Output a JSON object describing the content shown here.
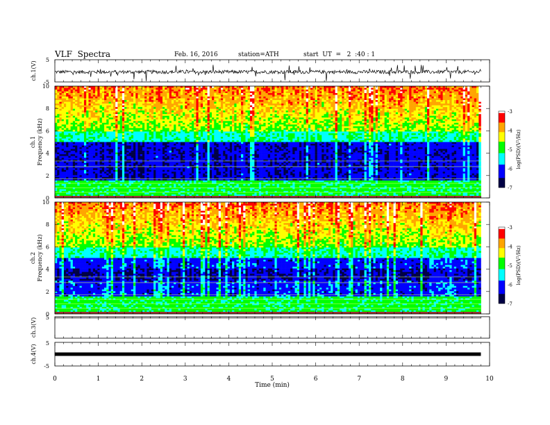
{
  "header": {
    "title": "VLF  Spectra",
    "date": "Feb. 16, 2016",
    "station": "station=ATH",
    "start": "start  UT  =   2  :40 : 1"
  },
  "colors": {
    "spectrogram_ramp": [
      "#ffffff",
      "#ff0000",
      "#ffa500",
      "#ffff00",
      "#00ff00",
      "#00ffff",
      "#0000ff",
      "#000044"
    ]
  },
  "chart_data": [
    {
      "type": "line",
      "title": "",
      "ylabel": "ch.1(V)",
      "ylim": [
        -5,
        5
      ],
      "yticks": [
        "5",
        "-5"
      ],
      "description_values": {
        "baseline_V": -0.5,
        "spike_range_V": [
          -5,
          3
        ]
      }
    },
    {
      "type": "heatmap",
      "ylabel_channel": "ch.1",
      "ylabel": "Frequency  (kHz)",
      "ylim": [
        0,
        10
      ],
      "yticks": [
        "10",
        "8",
        "6",
        "4",
        "2",
        "0"
      ],
      "colorbar": {
        "label": "log(PSD)(V²/Hz)",
        "range": [
          -7,
          -3
        ],
        "ticks": [
          "-3",
          "-4",
          "-5",
          "-6",
          "-7"
        ]
      }
    },
    {
      "type": "heatmap",
      "ylabel_channel": "ch.2",
      "ylabel": "Frequency  (kHz)",
      "ylim": [
        0,
        10
      ],
      "yticks": [
        "10",
        "8",
        "6",
        "4",
        "2",
        "0"
      ],
      "colorbar": {
        "label": "log(PSD)(V²/Hz)",
        "range": [
          -7,
          -3
        ],
        "ticks": [
          "-3",
          "-4",
          "-5",
          "-6",
          "-7"
        ]
      }
    },
    {
      "type": "line",
      "ylabel": "ch.3(V)",
      "ylim": [
        -5,
        5
      ],
      "yticks": [
        "5"
      ],
      "description_values": {
        "baseline_V": 5
      }
    },
    {
      "type": "line",
      "ylabel": "ch.4(V)",
      "ylim": [
        -5,
        5
      ],
      "yticks": [
        "5",
        "-5"
      ],
      "description_values": {
        "baseline_V": 0
      }
    }
  ],
  "xaxis": {
    "label": "Time  (min)",
    "range": [
      0,
      10
    ],
    "ticks": [
      "0",
      "1",
      "2",
      "3",
      "4",
      "5",
      "6",
      "7",
      "8",
      "9",
      "10"
    ],
    "data_end_min": 9.8
  }
}
